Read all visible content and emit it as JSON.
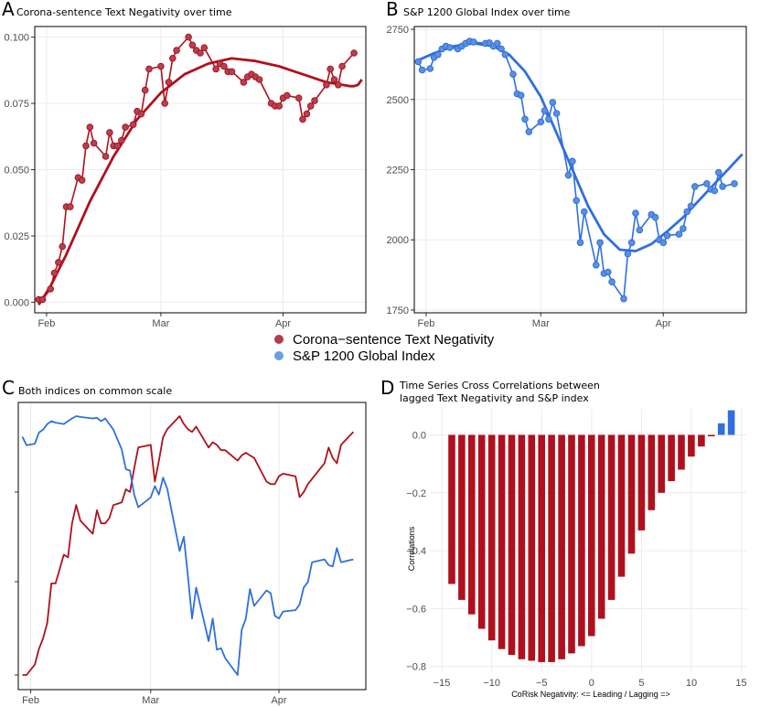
{
  "legend": {
    "items": [
      {
        "label": "Corona−sentence Text Negativity",
        "color": "#b5394f"
      },
      {
        "label": "S&P 1200 Global Index",
        "color": "#6a9fe3"
      }
    ]
  },
  "colors": {
    "red": "#b0101e",
    "blue": "#2f6fe0",
    "grid": "#ebebeb"
  },
  "chart_data": [
    {
      "panel": "A",
      "type": "line",
      "title": "Corona-sentence Text Negativity over time",
      "x_ticks": [
        "Feb",
        "Mar",
        "Apr"
      ],
      "x_tick_days": [
        1,
        30,
        61
      ],
      "xlim": [
        -2,
        82
      ],
      "y_ticks": [
        "0.000",
        "0.025",
        "0.050",
        "0.075",
        "0.100"
      ],
      "ylim": [
        -0.004,
        0.104
      ],
      "x": [
        -1,
        0,
        2,
        3,
        4,
        5,
        6,
        7,
        9,
        10,
        11,
        12,
        13,
        16,
        17,
        18,
        19,
        20,
        21,
        23,
        24,
        25,
        26,
        27,
        30,
        31,
        32,
        33,
        34,
        37,
        38,
        39,
        40,
        41,
        44,
        45,
        46,
        47,
        48,
        51,
        52,
        53,
        54,
        55,
        58,
        59,
        60,
        61,
        62,
        65,
        66,
        67,
        68,
        69,
        72,
        73,
        74,
        75,
        76,
        79
      ],
      "values": [
        0.001,
        0.001,
        0.005,
        0.011,
        0.015,
        0.021,
        0.036,
        0.036,
        0.047,
        0.046,
        0.059,
        0.066,
        0.06,
        0.055,
        0.064,
        0.059,
        0.059,
        0.061,
        0.066,
        0.067,
        0.072,
        0.071,
        0.08,
        0.088,
        0.089,
        0.075,
        0.083,
        0.092,
        0.095,
        0.1,
        0.097,
        0.095,
        0.094,
        0.096,
        0.088,
        0.09,
        0.089,
        0.087,
        0.087,
        0.083,
        0.085,
        0.086,
        0.085,
        0.084,
        0.075,
        0.074,
        0.074,
        0.077,
        0.078,
        0.077,
        0.069,
        0.071,
        0.074,
        0.076,
        0.082,
        0.088,
        0.084,
        0.082,
        0.089,
        0.094
      ],
      "trend": [
        -0.001,
        0.006,
        0.018,
        0.038,
        0.055,
        0.069,
        0.079,
        0.086,
        0.09,
        0.092,
        0.091,
        0.089,
        0.087,
        0.085,
        0.083,
        0.082,
        0.0815,
        0.0815,
        0.082,
        0.083,
        0.084
      ],
      "trend_x": [
        -1,
        2,
        6,
        12,
        18,
        24,
        30,
        36,
        42,
        48,
        54,
        60,
        64,
        68,
        72,
        76,
        78,
        79,
        80,
        80.5,
        81
      ]
    },
    {
      "panel": "B",
      "type": "line",
      "title": "S&P 1200 Global Index over time",
      "x_ticks": [
        "Feb",
        "Mar",
        "Apr"
      ],
      "x_tick_days": [
        1,
        30,
        61
      ],
      "xlim": [
        -2,
        82
      ],
      "y_ticks": [
        "1750",
        "2000",
        "2250",
        "2500",
        "2750"
      ],
      "ylim": [
        1740,
        2760
      ],
      "x": [
        -1,
        0,
        2,
        3,
        4,
        5,
        6,
        7,
        9,
        10,
        11,
        12,
        13,
        16,
        17,
        18,
        19,
        20,
        21,
        23,
        24,
        25,
        26,
        27,
        30,
        31,
        32,
        33,
        34,
        37,
        38,
        39,
        40,
        41,
        44,
        45,
        46,
        47,
        48,
        51,
        52,
        53,
        54,
        55,
        58,
        59,
        60,
        61,
        62,
        65,
        66,
        67,
        68,
        69,
        72,
        73,
        74,
        75,
        76,
        79
      ],
      "values": [
        2635,
        2605,
        2610,
        2650,
        2660,
        2680,
        2690,
        2685,
        2680,
        2690,
        2700,
        2708,
        2705,
        2700,
        2702,
        2690,
        2700,
        2680,
        2660,
        2590,
        2520,
        2515,
        2430,
        2385,
        2420,
        2460,
        2430,
        2490,
        2450,
        2230,
        2280,
        2140,
        1990,
        2100,
        1910,
        1990,
        1880,
        1885,
        1850,
        1790,
        1950,
        1990,
        2095,
        2035,
        2090,
        2080,
        2000,
        1990,
        2015,
        2020,
        2040,
        2100,
        2120,
        2190,
        2200,
        2180,
        2175,
        2240,
        2190,
        2200
      ],
      "trend": [
        2640,
        2665,
        2690,
        2700,
        2690,
        2660,
        2600,
        2510,
        2380,
        2250,
        2120,
        2020,
        1965,
        1960,
        1985,
        2030,
        2080,
        2140,
        2200,
        2260,
        2305
      ],
      "trend_x": [
        -1,
        3,
        8,
        13,
        18,
        22,
        26,
        30,
        34,
        38,
        42,
        46,
        50,
        54,
        58,
        62,
        66,
        70,
        74,
        78,
        81
      ]
    },
    {
      "panel": "C",
      "type": "line",
      "title": "Both indices on common scale",
      "x_ticks": [
        "Feb",
        "Mar",
        "Apr"
      ],
      "x_tick_days": [
        1,
        30,
        61
      ],
      "xlim": [
        -2,
        82
      ],
      "series": [
        {
          "name": "Corona−sentence Text Negativity",
          "values_ref": "A"
        },
        {
          "name": "S&P 1200 Global Index",
          "values_ref": "B"
        }
      ]
    },
    {
      "panel": "D",
      "type": "bar",
      "title_line1": "Time Series Cross Correlations between",
      "title_line2": "lagged Text Negativity and S&P index",
      "xlabel": "CoRisk Negativity: <= Leading / Lagging =>",
      "ylabel": "Correlations",
      "x_ticks": [
        "−15",
        "−10",
        "−5",
        "0",
        "5",
        "10",
        "15"
      ],
      "x_tick_values": [
        -15,
        -10,
        -5,
        0,
        5,
        10,
        15
      ],
      "xlim": [
        -16.2,
        15.5
      ],
      "y_ticks": [
        "−0.8",
        "−0.6",
        "−0.4",
        "−0.2",
        "0.0"
      ],
      "y_tick_values": [
        -0.8,
        -0.6,
        -0.4,
        -0.2,
        0.0
      ],
      "ylim": [
        -0.82,
        0.09
      ],
      "lags": [
        -14,
        -13,
        -12,
        -11,
        -10,
        -9,
        -8,
        -7,
        -6,
        -5,
        -4,
        -3,
        -2,
        -1,
        0,
        1,
        2,
        3,
        4,
        5,
        6,
        7,
        8,
        9,
        10,
        11,
        12,
        13,
        14
      ],
      "values": [
        -0.515,
        -0.57,
        -0.62,
        -0.67,
        -0.71,
        -0.74,
        -0.76,
        -0.775,
        -0.78,
        -0.785,
        -0.785,
        -0.775,
        -0.755,
        -0.73,
        -0.695,
        -0.635,
        -0.57,
        -0.49,
        -0.41,
        -0.33,
        -0.26,
        -0.2,
        -0.16,
        -0.12,
        -0.075,
        -0.04,
        -0.005,
        0.04,
        0.085
      ]
    }
  ],
  "panels": {
    "A": {
      "letter": "A",
      "title": "Corona-sentence Text Negativity over time"
    },
    "B": {
      "letter": "B",
      "title": "S&P 1200 Global Index over time"
    },
    "C": {
      "letter": "C",
      "title": "Both indices on common scale"
    },
    "D": {
      "letter": "D",
      "title_line1": "Time Series Cross Correlations between",
      "title_line2": "lagged Text Negativity and S&P index",
      "xlabel": "CoRisk Negativity: <= Leading / Lagging =>",
      "ylabel": "Correlations"
    }
  }
}
